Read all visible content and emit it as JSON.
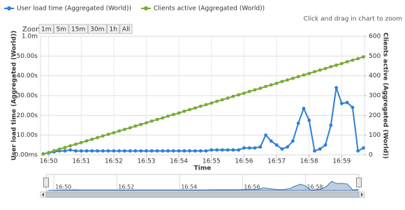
{
  "chart_data": {
    "type": "line",
    "hint": "Click and drag in chart to zoom",
    "range_selector": {
      "label": "Zoom",
      "buttons": [
        "1m",
        "5m",
        "15m",
        "30m",
        "1h",
        "All"
      ]
    },
    "x_label": "Time",
    "y_label": "User load time (Aggregated (World))",
    "y2_label": "Clients active (Aggregated (World))",
    "x": [
      2990,
      3000,
      3010,
      3020,
      3030,
      3040,
      3050,
      3060,
      3070,
      3080,
      3090,
      3100,
      3110,
      3120,
      3130,
      3140,
      3150,
      3160,
      3170,
      3180,
      3190,
      3200,
      3210,
      3220,
      3230,
      3240,
      3250,
      3260,
      3270,
      3280,
      3290,
      3300,
      3310,
      3320,
      3330,
      3340,
      3350,
      3360,
      3370,
      3380,
      3390,
      3400,
      3410,
      3420,
      3430,
      3440,
      3450,
      3460,
      3470,
      3480,
      3490,
      3500,
      3510,
      3520,
      3530,
      3540,
      3550,
      3560,
      3570,
      3580
    ],
    "xlim": [
      2985,
      3582
    ],
    "xticks": [
      {
        "value": 3000,
        "label": "16:50"
      },
      {
        "value": 3060,
        "label": "16:51"
      },
      {
        "value": 3120,
        "label": "16:52"
      },
      {
        "value": 3180,
        "label": "16:53"
      },
      {
        "value": 3240,
        "label": "16:54"
      },
      {
        "value": 3300,
        "label": "16:55"
      },
      {
        "value": 3360,
        "label": "16:56"
      },
      {
        "value": 3420,
        "label": "16:57"
      },
      {
        "value": 3480,
        "label": "16:58"
      },
      {
        "value": 3540,
        "label": "16:59"
      }
    ],
    "ylim": [
      0,
      60
    ],
    "yticks": [
      {
        "value": 0,
        "label": "0.00ms"
      },
      {
        "value": 10,
        "label": "10.00s"
      },
      {
        "value": 20,
        "label": "20.00s"
      },
      {
        "value": 30,
        "label": "30.00s"
      },
      {
        "value": 40,
        "label": "40.00s"
      },
      {
        "value": 50,
        "label": "50.00s"
      },
      {
        "value": 60,
        "label": "1.0m"
      }
    ],
    "y2lim": [
      0,
      600
    ],
    "y2ticks": [
      0,
      100,
      200,
      300,
      400,
      500,
      600
    ],
    "grid": true,
    "series": [
      {
        "name": "User load time (Aggregated (World))",
        "color": "#2f7ed8",
        "values": [
          0.5,
          1,
          1.5,
          2,
          2,
          2.5,
          2,
          2,
          2,
          2,
          2,
          2,
          2,
          2,
          2,
          2,
          2,
          2,
          2,
          2,
          2,
          2,
          2,
          2,
          2,
          2,
          2,
          2,
          2,
          2,
          2,
          2.5,
          2.5,
          2.5,
          2.5,
          2.5,
          2.5,
          3.5,
          3.5,
          3.5,
          4,
          10,
          7,
          5,
          3,
          4,
          7,
          16,
          23.5,
          17.5,
          2,
          3,
          5,
          15,
          34,
          26,
          26.5,
          24,
          2,
          3.5
        ]
      },
      {
        "name": "Clients active (Aggregated (World))",
        "color": "#77aa33",
        "axis": "y2",
        "values": [
          4,
          12,
          21,
          29,
          37,
          46,
          54,
          62,
          71,
          79,
          87,
          96,
          104,
          112,
          121,
          129,
          137,
          146,
          154,
          162,
          171,
          179,
          187,
          196,
          204,
          212,
          221,
          229,
          237,
          246,
          254,
          262,
          271,
          279,
          287,
          296,
          304,
          312,
          321,
          329,
          337,
          346,
          354,
          362,
          371,
          379,
          387,
          396,
          404,
          412,
          421,
          429,
          437,
          446,
          454,
          462,
          471,
          479,
          487,
          496
        ]
      }
    ],
    "navigator": {
      "xticks": [
        {
          "value": 3000,
          "label": "16:50"
        },
        {
          "value": 3120,
          "label": "16:52"
        },
        {
          "value": 3240,
          "label": "16:54"
        },
        {
          "value": 3360,
          "label": "16:56"
        },
        {
          "value": 3480,
          "label": "16:58"
        }
      ]
    }
  }
}
